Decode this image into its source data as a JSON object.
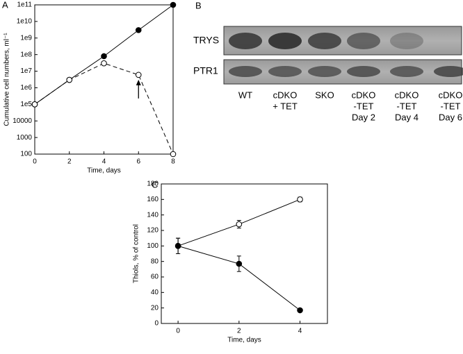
{
  "chart_data": [
    {
      "type": "line",
      "panel": "A",
      "xlabel": "Time, days",
      "ylabel": "Cumulative cell numbers, ml⁻¹",
      "x": [
        0,
        2,
        4,
        6,
        8
      ],
      "xlim": [
        0,
        8
      ],
      "xticks": [
        0,
        2,
        4,
        6,
        8
      ],
      "yscale": "log",
      "ylim": [
        100,
        100000000000
      ],
      "yticks": [
        100,
        1000,
        10000,
        {
          "value": 100000,
          "label": "1e5"
        },
        {
          "value": 1000000,
          "label": "1e6"
        },
        {
          "value": 10000000,
          "label": "1e7"
        },
        {
          "value": 100000000,
          "label": "1e8"
        },
        {
          "value": 1000000000,
          "label": "1e9"
        },
        {
          "value": 10000000000,
          "label": "1e10"
        },
        {
          "value": 100000000000,
          "label": "1e11"
        }
      ],
      "series": [
        {
          "marker": "filled",
          "color": "#000000",
          "dash": false,
          "values": [
            100000,
            3000000,
            80000000,
            3000000000,
            100000000000
          ]
        },
        {
          "marker": "open",
          "color": "#000000",
          "dash": true,
          "values": [
            100000,
            3000000,
            30000000,
            6000000,
            100
          ]
        }
      ]
    },
    {
      "type": "line",
      "panel": "C",
      "xlabel": "Time, days",
      "ylabel": "Thiols, % of control",
      "x": [
        0,
        2,
        4
      ],
      "xlim": [
        -0.55,
        4.9
      ],
      "xticks": [
        0,
        2,
        4
      ],
      "ylim": [
        0,
        180
      ],
      "yticks": [
        0,
        20,
        40,
        60,
        80,
        100,
        120,
        140,
        160,
        180
      ],
      "series": [
        {
          "marker": "open",
          "color": "#000000",
          "dash": false,
          "values": [
            100,
            128,
            160
          ],
          "errors": [
            10,
            5,
            3
          ]
        },
        {
          "marker": "filled",
          "color": "#000000",
          "dash": false,
          "values": [
            100,
            77,
            17
          ],
          "errors": [
            10,
            10,
            2
          ]
        }
      ]
    }
  ],
  "blot": {
    "panel": "B",
    "rows": [
      "TRYS",
      "PTR1"
    ],
    "lanes": [
      [
        "WT"
      ],
      [
        "cDKO",
        "+ TET"
      ],
      [
        "SKO"
      ],
      [
        "cDKO",
        "-TET",
        "Day 2"
      ],
      [
        "cDKO",
        "-TET",
        "Day 4"
      ],
      [
        "cDKO",
        "-TET",
        "Day 6"
      ]
    ]
  }
}
